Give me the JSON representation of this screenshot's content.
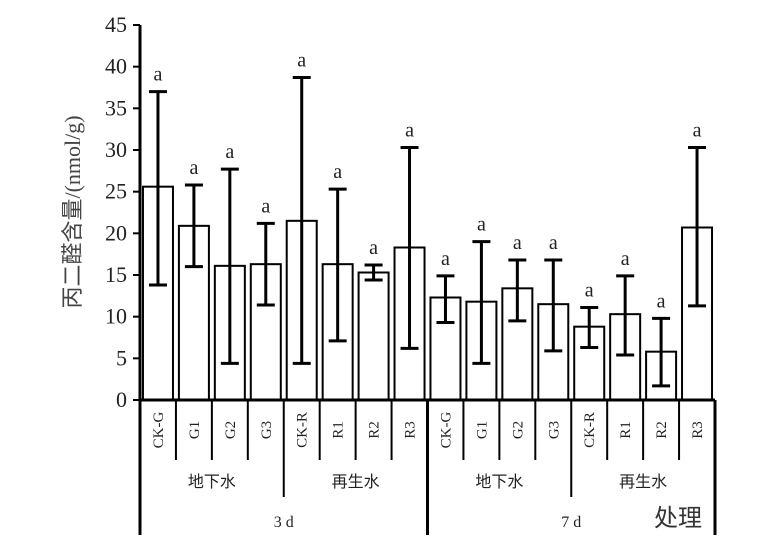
{
  "chart_data": {
    "type": "bar",
    "title": "",
    "ylabel": "丙二醛含量/(nmol/g)",
    "xlabel": "处理",
    "ylim": [
      0,
      45
    ],
    "yticks": [
      "0",
      "5",
      "10",
      "15",
      "20",
      "25",
      "30",
      "35",
      "40",
      "45"
    ],
    "categories": [
      "CK-G",
      "G1",
      "G2",
      "G3",
      "CK-R",
      "R1",
      "R2",
      "R3",
      "CK-G",
      "G1",
      "G2",
      "G3",
      "CK-R",
      "R1",
      "R2",
      "R3"
    ],
    "values": [
      25.6,
      20.9,
      16.1,
      16.3,
      21.5,
      16.3,
      15.3,
      18.3,
      12.3,
      11.8,
      13.4,
      11.5,
      8.8,
      10.3,
      5.8,
      20.7
    ],
    "error_low": [
      13.8,
      16.0,
      4.4,
      11.4,
      4.4,
      7.1,
      14.4,
      6.2,
      9.3,
      4.4,
      9.5,
      5.9,
      6.3,
      5.4,
      1.7,
      11.3
    ],
    "error_high": [
      37.0,
      25.8,
      27.7,
      21.2,
      38.7,
      25.3,
      16.2,
      30.3,
      14.9,
      19.0,
      16.8,
      16.8,
      11.1,
      14.9,
      9.8,
      30.3
    ],
    "significance": [
      "a",
      "a",
      "a",
      "a",
      "a",
      "a",
      "a",
      "a",
      "a",
      "a",
      "a",
      "a",
      "a",
      "a",
      "a",
      "a"
    ],
    "water_groups": [
      "地下水",
      "再生水",
      "地下水",
      "再生水"
    ],
    "time_groups": [
      "3 d",
      "7 d"
    ],
    "bar_fill": "#ffffff",
    "line_color": "#000000"
  }
}
